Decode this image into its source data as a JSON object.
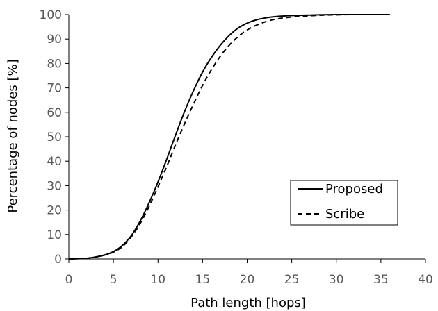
{
  "chart_data": {
    "type": "line",
    "title": "",
    "xlabel": "Path length [hops]",
    "ylabel": "Percentage of nodes [%]",
    "xlim": [
      0,
      40
    ],
    "ylim": [
      0,
      100
    ],
    "xticks": [
      0,
      5,
      10,
      15,
      20,
      25,
      30,
      35,
      40
    ],
    "yticks": [
      0,
      10,
      20,
      30,
      40,
      50,
      60,
      70,
      80,
      90,
      100
    ],
    "grid": false,
    "legend_position": "bottom-right",
    "series": [
      {
        "name": "Proposed",
        "style": "solid",
        "color": "#000000",
        "x": [
          0,
          1,
          2,
          3,
          4,
          5,
          6,
          7,
          8,
          9,
          10,
          11,
          12,
          13,
          14,
          15,
          16,
          17,
          18,
          19,
          20,
          21,
          22,
          23,
          24,
          25,
          26,
          27,
          28,
          30,
          32,
          34,
          36
        ],
        "y": [
          0,
          0.1,
          0.3,
          0.8,
          1.6,
          3,
          5.5,
          9.5,
          15.5,
          23,
          31.5,
          41,
          51,
          60.5,
          69,
          76.5,
          82.5,
          87.5,
          91.5,
          94.5,
          96.5,
          97.8,
          98.6,
          99.1,
          99.4,
          99.6,
          99.7,
          99.8,
          99.9,
          100,
          100,
          100,
          100
        ]
      },
      {
        "name": "Scribe",
        "style": "dashed",
        "color": "#000000",
        "x": [
          0,
          1,
          2,
          3,
          4,
          5,
          6,
          7,
          8,
          9,
          10,
          11,
          12,
          13,
          14,
          15,
          16,
          17,
          18,
          19,
          20,
          21,
          22,
          23,
          24,
          25,
          26,
          27,
          28,
          30,
          32,
          34,
          36
        ],
        "y": [
          0,
          0.1,
          0.3,
          0.8,
          1.6,
          2.8,
          5,
          9,
          14.5,
          21.5,
          29.5,
          38,
          47,
          55.5,
          63.5,
          71,
          77.5,
          83,
          87.5,
          91,
          93.7,
          95.6,
          97,
          98,
          98.6,
          99,
          99.3,
          99.5,
          99.7,
          99.9,
          100,
          100,
          100
        ]
      }
    ]
  }
}
